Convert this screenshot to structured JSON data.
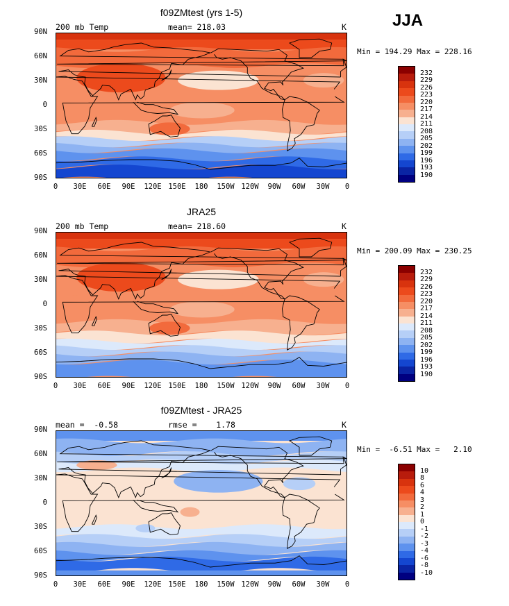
{
  "season": "JJA",
  "panels": [
    {
      "title": "f09ZMtest (yrs 1-5)",
      "left_text": "200 mb Temp",
      "center_text": "mean= 218.03",
      "right_text": "K",
      "minmax": "Min = 194.29 Max = 228.16",
      "levels": [
        "232",
        "229",
        "226",
        "223",
        "220",
        "217",
        "214",
        "211",
        "208",
        "205",
        "202",
        "199",
        "196",
        "193",
        "190"
      ]
    },
    {
      "title": "JRA25",
      "left_text": "200 mb Temp",
      "center_text": "mean= 218.60",
      "right_text": "K",
      "minmax": "Min = 200.09 Max = 230.25",
      "levels": [
        "232",
        "229",
        "226",
        "223",
        "220",
        "217",
        "214",
        "211",
        "208",
        "205",
        "202",
        "199",
        "196",
        "193",
        "190"
      ]
    },
    {
      "title": "f09ZMtest - JRA25",
      "left_text": "mean =  -0.58",
      "center_text": "rmse =    1.78",
      "right_text": "K",
      "minmax": "Min =  -6.51 Max =   2.10",
      "levels": [
        "10",
        "8",
        "6",
        "4",
        "3",
        "2",
        "1",
        "0",
        "-1",
        "-2",
        "-3",
        "-4",
        "-6",
        "-8",
        "-10"
      ]
    }
  ],
  "lat_labels": [
    "90N",
    "60N",
    "30N",
    "0",
    "30S",
    "60S",
    "90S"
  ],
  "lon_labels": [
    "0",
    "30E",
    "60E",
    "90E",
    "120E",
    "150E",
    "180",
    "150W",
    "120W",
    "90W",
    "60W",
    "30W",
    "0"
  ],
  "colors": {
    "abs_scale": [
      "#8b0000",
      "#b81c0c",
      "#d8330e",
      "#ec4a1c",
      "#f26a3c",
      "#f68e64",
      "#f7b08f",
      "#fbe3d2",
      "#dce9fb",
      "#b6cff7",
      "#8eb3f2",
      "#5e92ee",
      "#2f6ae6",
      "#1446d0",
      "#0a24a4",
      "#000080"
    ],
    "diff_scale": [
      "#8b0000",
      "#b81c0c",
      "#d8330e",
      "#ec4a1c",
      "#f26a3c",
      "#f68e64",
      "#f7b08f",
      "#fbe3d2",
      "#dce9fb",
      "#b6cff7",
      "#8eb3f2",
      "#5e92ee",
      "#2f6ae6",
      "#1446d0",
      "#0a24a4",
      "#000080"
    ]
  }
}
